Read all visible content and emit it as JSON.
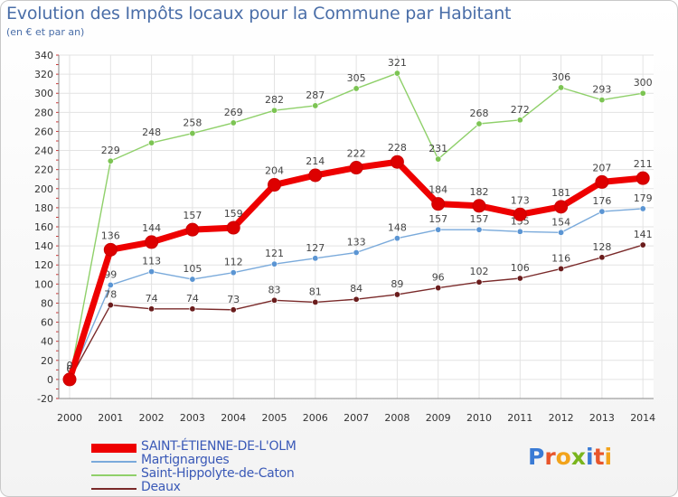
{
  "title": "Evolution des Impôts locaux pour la Commune par Habitant",
  "subtitle": "(en € et par an)",
  "logo": {
    "text": "Proxiti",
    "letter_colors": [
      "#3a7bd5",
      "#e8552b",
      "#f2a31b",
      "#7ab51d",
      "#3a7bd5",
      "#e8552b",
      "#f2a31b"
    ]
  },
  "chart_data": {
    "type": "line",
    "title": "Evolution des Impôts locaux pour la Commune par Habitant",
    "subtitle": "(en € et par an)",
    "x": [
      2000,
      2001,
      2002,
      2003,
      2004,
      2005,
      2006,
      2007,
      2008,
      2009,
      2010,
      2011,
      2012,
      2013,
      2014
    ],
    "x_tick_labels": [
      "2000",
      "2001",
      "2002",
      "2003",
      "2004",
      "2005",
      "2006",
      "2007",
      "2008",
      "2009",
      "2010",
      "2011",
      "2012",
      "2013",
      "2014"
    ],
    "ylim": [
      -20,
      340
    ],
    "y_ticks": [
      -20,
      0,
      20,
      40,
      60,
      80,
      100,
      120,
      140,
      160,
      180,
      200,
      220,
      240,
      260,
      280,
      300,
      320,
      340
    ],
    "grid": true,
    "legend_position": "bottom-left",
    "series": [
      {
        "name": "Saint-Hippolyte-de-Caton",
        "color": "#8fd06a",
        "marker_color": "#7cc453",
        "values": [
          0,
          229,
          248,
          258,
          269,
          282,
          287,
          305,
          321,
          231,
          268,
          272,
          306,
          293,
          300
        ]
      },
      {
        "name": "Martignargues",
        "color": "#7aaadb",
        "marker_color": "#5b95d3",
        "values": [
          0,
          99,
          113,
          105,
          112,
          121,
          127,
          133,
          148,
          157,
          157,
          155,
          154,
          176,
          179
        ]
      },
      {
        "name": "Deaux",
        "color": "#7a2a2a",
        "marker_color": "#6a1c1c",
        "values": [
          0,
          78,
          74,
          74,
          73,
          83,
          81,
          84,
          89,
          96,
          102,
          106,
          116,
          128,
          141
        ]
      },
      {
        "name": "SAINT-ÉTIENNE-DE-L'OLM",
        "color": "#ee0000",
        "marker_color": "#dd0000",
        "values": [
          0,
          136,
          144,
          157,
          159,
          204,
          214,
          222,
          228,
          184,
          182,
          173,
          181,
          207,
          211
        ]
      }
    ],
    "legend_order": [
      "SAINT-ÉTIENNE-DE-L'OLM",
      "Martignargues",
      "Saint-Hippolyte-de-Caton",
      "Deaux"
    ]
  }
}
